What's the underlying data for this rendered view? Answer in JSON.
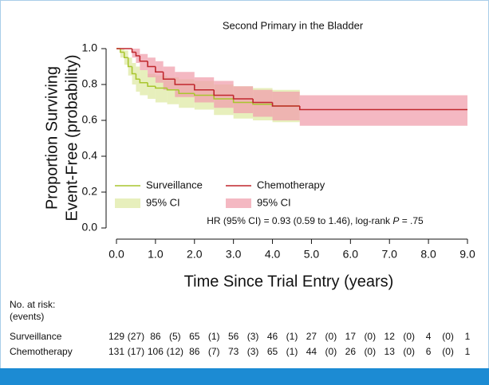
{
  "chart_data": {
    "type": "line",
    "step": true,
    "title": "Second Primary in the Bladder",
    "x_label": "Time Since Trial Entry (years)",
    "y_label": [
      "Proportion Surviving",
      "Event-Free (probability)"
    ],
    "xlim": [
      0,
      9
    ],
    "ylim": [
      0,
      1
    ],
    "xticks": [
      {
        "value": 0,
        "label": "0.0"
      },
      {
        "value": 1,
        "label": "1.0"
      },
      {
        "value": 2,
        "label": "2.0"
      },
      {
        "value": 3,
        "label": "3.0"
      },
      {
        "value": 4,
        "label": "4.0"
      },
      {
        "value": 5,
        "label": "5.0"
      },
      {
        "value": 6,
        "label": "6.0"
      },
      {
        "value": 7,
        "label": "7.0"
      },
      {
        "value": 8,
        "label": "8.0"
      },
      {
        "value": 9,
        "label": "9.0"
      }
    ],
    "yticks": [
      {
        "value": 0,
        "label": "0.0"
      },
      {
        "value": 0.2,
        "label": "0.2"
      },
      {
        "value": 0.4,
        "label": "0.4"
      },
      {
        "value": 0.6,
        "label": "0.6"
      },
      {
        "value": 0.8,
        "label": "0.8"
      },
      {
        "value": 1,
        "label": "1.0"
      }
    ],
    "ci_label": "95% CI",
    "annotation": [
      "HR (95% CI) = 0.93 (0.59 to 1.46), log-rank ",
      "P",
      " = .75"
    ],
    "series": [
      {
        "name": "Surveillance",
        "color": "#a9c62e",
        "band_color": "#dfeaa6",
        "x": [
          0,
          0.1,
          0.2,
          0.3,
          0.4,
          0.5,
          0.6,
          0.8,
          1.0,
          1.3,
          1.6,
          2.0,
          2.5,
          3.0,
          3.5,
          4.0,
          4.7
        ],
        "values": [
          1.0,
          0.98,
          0.95,
          0.9,
          0.86,
          0.83,
          0.81,
          0.79,
          0.78,
          0.77,
          0.75,
          0.74,
          0.72,
          0.7,
          0.69,
          0.68,
          0.68
        ],
        "lower": [
          1.0,
          0.95,
          0.91,
          0.85,
          0.8,
          0.76,
          0.74,
          0.72,
          0.7,
          0.69,
          0.67,
          0.66,
          0.63,
          0.61,
          0.6,
          0.59,
          0.59
        ],
        "upper": [
          1.0,
          1.0,
          0.99,
          0.95,
          0.92,
          0.9,
          0.88,
          0.86,
          0.85,
          0.84,
          0.83,
          0.82,
          0.8,
          0.79,
          0.78,
          0.77,
          0.77
        ]
      },
      {
        "name": "Chemotherapy",
        "color": "#c0272d",
        "band_color": "#f0a0ae",
        "x": [
          0,
          0.4,
          0.5,
          0.6,
          0.8,
          1.0,
          1.2,
          1.5,
          2.0,
          2.5,
          3.0,
          3.5,
          4.0,
          4.7,
          9.0
        ],
        "values": [
          1.0,
          0.98,
          0.96,
          0.93,
          0.9,
          0.87,
          0.83,
          0.8,
          0.77,
          0.74,
          0.72,
          0.7,
          0.68,
          0.66,
          0.66
        ],
        "lower": [
          1.0,
          0.95,
          0.92,
          0.88,
          0.84,
          0.81,
          0.77,
          0.73,
          0.7,
          0.67,
          0.64,
          0.62,
          0.6,
          0.57,
          0.57
        ],
        "upper": [
          1.0,
          1.0,
          1.0,
          0.97,
          0.95,
          0.93,
          0.9,
          0.87,
          0.84,
          0.82,
          0.79,
          0.77,
          0.76,
          0.74,
          0.74
        ]
      }
    ],
    "risk_table": {
      "title": [
        "No. at risk:",
        "(events)"
      ],
      "rows": [
        {
          "name": "Surveillance",
          "at_risk": [
            129,
            86,
            65,
            56,
            46,
            27,
            17,
            12,
            4,
            1
          ],
          "events": [
            27,
            5,
            1,
            3,
            1,
            0,
            0,
            0,
            0
          ],
          "event_labels": [
            "(27)",
            "(5)",
            "(1)",
            "(3)",
            "(1)",
            "(0)",
            "(0)",
            "(0)",
            "(0)"
          ]
        },
        {
          "name": "Chemotherapy",
          "at_risk": [
            131,
            106,
            86,
            73,
            65,
            44,
            26,
            13,
            6,
            1
          ],
          "events": [
            17,
            12,
            7,
            3,
            1,
            0,
            0,
            0,
            0
          ],
          "event_labels": [
            "(17)",
            "(12)",
            "(7)",
            "(3)",
            "(1)",
            "(0)",
            "(0)",
            "(0)",
            "(0)"
          ]
        }
      ]
    }
  }
}
